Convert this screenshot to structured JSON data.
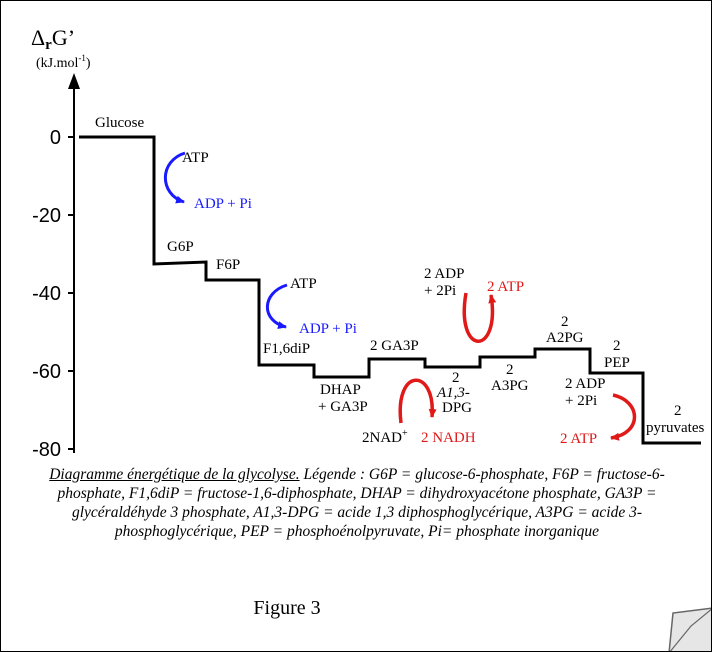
{
  "axis": {
    "symbol": "Δ",
    "sub": "r",
    "rest": "G’",
    "unit_prefix": "(kJ.mol",
    "unit_exp": "-1",
    "unit_suffix": ")",
    "ticks": [
      "0",
      "-20",
      "-40",
      "-60",
      "-80"
    ]
  },
  "levels": {
    "glucose": "Glucose",
    "g6p": "G6P",
    "f6p": "F6P",
    "f16dip": "F1,6diP",
    "dhap_1": "DHAP",
    "dhap_2": "+ GA3P",
    "ga3p": "2 GA3P",
    "a13dpg_1": "2",
    "a13dpg_2": "A1,3-",
    "a13dpg_3": "DPG",
    "a3pg_1": "2",
    "a3pg_2": "A3PG",
    "a2pg_1": "2",
    "a2pg_2": "A2PG",
    "pep_1": "2",
    "pep_2": "PEP",
    "pyr_1": "2",
    "pyr_2": "pyruvates"
  },
  "reactions": {
    "atp_in_1": "ATP",
    "adp_out_1": "ADP + Pi",
    "atp_in_2": "ATP",
    "adp_out_2": "ADP + Pi",
    "nad_in": "2NAD",
    "nad_sup": "+",
    "nadh_out": "2 NADH",
    "adp_in_1a": "2 ADP",
    "adp_in_1b": "+ 2Pi",
    "atp_out_1": "2 ATP",
    "adp_in_2a": "2 ADP",
    "adp_in_2b": "+ 2Pi",
    "atp_out_2": "2 ATP"
  },
  "colors": {
    "blue": "#1a1aff",
    "red": "#e01919",
    "black": "#000000"
  },
  "caption": {
    "title": "Diagramme énergétique de la glycolyse.",
    "body": " Légende : G6P = glucose-6-phosphate, F6P = fructose-6-phosphate, F1,6diP = fructose-1,6-diphosphate, DHAP = dihydroxyacétone phosphate, GA3P = glycéraldéhyde 3 phosphate, A1,3-DPG = acide 1,3 diphosphoglycérique, A3PG = acide 3-phosphoglycérique, PEP = phosphoénolpyruvate, Pi= phosphate inorganique"
  },
  "figure_label": "Figure 3"
}
